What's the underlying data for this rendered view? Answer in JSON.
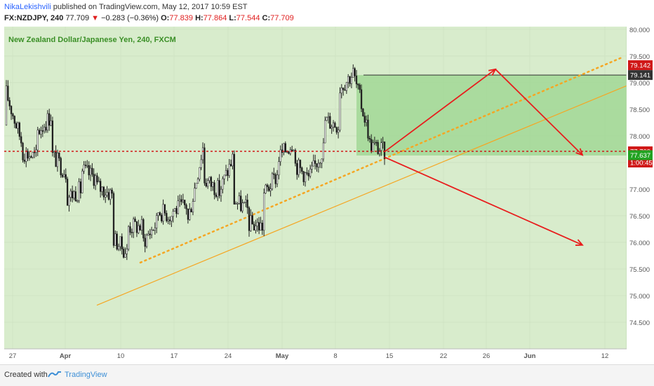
{
  "header": {
    "author": "NikaLekishvili",
    "published_text": "published on TradingView.com, May 12, 2017 10:59 EST",
    "symbol": "FX:NZDJPY, 240",
    "last": "77.709",
    "change_arrow": "▼",
    "change": "−0.283 (−0.36%)",
    "o_label": "O:",
    "o_value": "77.839",
    "h_label": "H:",
    "h_value": "77.864",
    "l_label": "L:",
    "l_value": "77.544",
    "c_label": "C:",
    "c_value": "77.709"
  },
  "footer": {
    "created_with": "Created with",
    "brand": "TradingView"
  },
  "colors": {
    "background": "#d8eccc",
    "candle": "#1f1f1f",
    "support_line": "#f5a623",
    "dotted_trend": "#f5a623",
    "resistance_dotted": "#d01818",
    "arrows": "#e81d1d",
    "target_box": "#9bd58f",
    "price_label_red": "#d01818",
    "price_label_green": "#22a322",
    "price_label_dark": "#333333"
  },
  "chart_data": {
    "type": "candlestick",
    "title": "New Zealand Dollar/Japanese Yen, 240, FXCM",
    "ylim": [
      74.0,
      80.05
    ],
    "y_ticks": [
      "80.000",
      "79.500",
      "79.000",
      "78.500",
      "78.000",
      "77.500",
      "77.000",
      "76.500",
      "76.000",
      "75.500",
      "75.000",
      "74.500"
    ],
    "x_ticks": [
      "27",
      "Apr",
      "10",
      "17",
      "24",
      "May",
      "8",
      "15",
      "22",
      "26",
      "Jun",
      "12"
    ],
    "price_labels": [
      {
        "text": "79.142",
        "value": 79.142,
        "style": "red"
      },
      {
        "text": "79.141",
        "value": 79.141,
        "style": "dark"
      },
      {
        "text": "77.709",
        "value": 77.709,
        "style": "red"
      },
      {
        "text": "1:00:45",
        "value": 77.709,
        "style": "red_sub"
      },
      {
        "text": "77.637",
        "value": 77.637,
        "style": "green"
      }
    ],
    "ohlc_path": [
      [
        78.2,
        78.8
      ],
      [
        77.9,
        77.7
      ],
      [
        77.6,
        78.05
      ],
      [
        78.4,
        77.65
      ],
      [
        77.3,
        76.85
      ],
      [
        77.0,
        77.35
      ],
      [
        77.2,
        77.05
      ],
      [
        76.9,
        76.1
      ],
      [
        75.8,
        76.3
      ],
      [
        76.3,
        76.0
      ],
      [
        76.4,
        76.6
      ],
      [
        76.5,
        76.6
      ],
      [
        76.7,
        76.4
      ],
      [
        77.8,
        77.2
      ],
      [
        77.0,
        76.9
      ],
      [
        77.6,
        76.8
      ],
      [
        76.6,
        76.35
      ],
      [
        76.3,
        76.9
      ],
      [
        77.3,
        77.6
      ],
      [
        77.9,
        77.5
      ],
      [
        77.2,
        77.2
      ],
      [
        77.8,
        78.3
      ],
      [
        78.2,
        78.9
      ],
      [
        79.2,
        79.1
      ],
      [
        78.0,
        77.85
      ],
      [
        77.7,
        77.71
      ]
    ],
    "resistance_level": 77.709,
    "target_box_top": 79.141,
    "target_box_bottom": 77.63,
    "support_trendline": [
      [
        75.5,
        0.0
      ],
      [
        79.0,
        1.0
      ]
    ],
    "annotations": []
  }
}
